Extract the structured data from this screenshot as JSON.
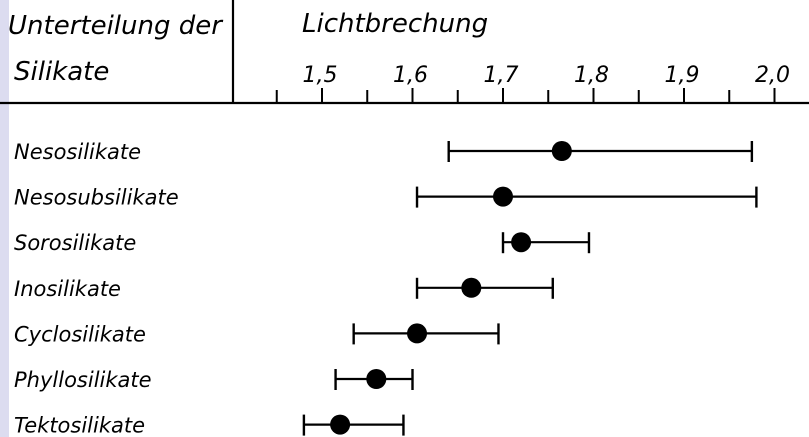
{
  "chart_data": {
    "type": "range",
    "header_left": [
      "Unterteilung der",
      "Silikate"
    ],
    "header_right": "Lichtbrechung",
    "x_axis": {
      "ticks": [
        1.5,
        1.6,
        1.7,
        1.8,
        1.9,
        2.0
      ],
      "tick_labels": [
        "1,5",
        "1,6",
        "1,7",
        "1,8",
        "1,9",
        "2,0"
      ],
      "minor_ticks": [
        1.45,
        1.55,
        1.65,
        1.75,
        1.85,
        1.95
      ],
      "range": [
        1.415,
        2.05
      ]
    },
    "categories": [
      "Nesosilikate",
      "Nesosubsilikate",
      "Sorosilikate",
      "Inosilikate",
      "Cyclosilikate",
      "Phyllosilikate",
      "Tektosilikate"
    ],
    "series": [
      {
        "min": 1.64,
        "max": 1.975,
        "mean": 1.765
      },
      {
        "min": 1.605,
        "max": 1.98,
        "mean": 1.7
      },
      {
        "min": 1.7,
        "max": 1.795,
        "mean": 1.72
      },
      {
        "min": 1.605,
        "max": 1.755,
        "mean": 1.665
      },
      {
        "min": 1.535,
        "max": 1.695,
        "mean": 1.605
      },
      {
        "min": 1.515,
        "max": 1.6,
        "mean": 1.56
      },
      {
        "min": 1.48,
        "max": 1.59,
        "mean": 1.52
      }
    ],
    "colors": {
      "ink": "#000000",
      "stripe": "#dcdcf0"
    }
  }
}
